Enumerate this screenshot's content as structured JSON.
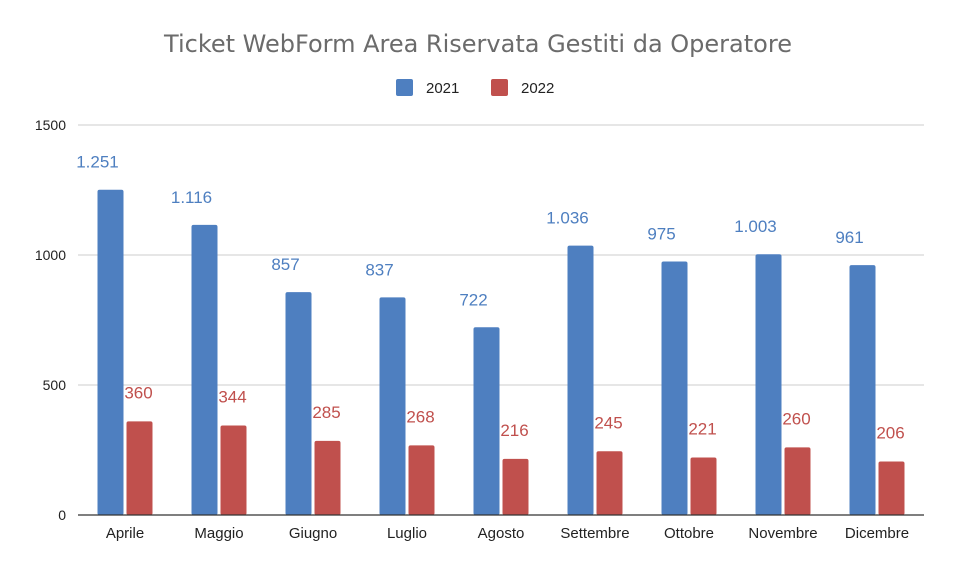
{
  "chart_data": {
    "type": "bar",
    "title": "Ticket WebForm Area Riservata Gestiti da Operatore",
    "xlabel": "",
    "ylabel": "",
    "ylim": [
      0,
      1500
    ],
    "yticks": [
      "0",
      "500",
      "1000",
      "1500"
    ],
    "ytick_values": [
      0,
      500,
      1000,
      1500
    ],
    "grid": true,
    "legend_position": "top-center",
    "categories": [
      "Aprile",
      "Maggio",
      "Giugno",
      "Luglio",
      "Agosto",
      "Settembre",
      "Ottobre",
      "Novembre",
      "Dicembre"
    ],
    "series": [
      {
        "name": "2021",
        "color": "#4e7fc0",
        "values": [
          1251,
          1116,
          857,
          837,
          722,
          1036,
          975,
          1003,
          961
        ],
        "labels": [
          "1.251",
          "1.116",
          "857",
          "837",
          "722",
          "1.036",
          "975",
          "1.003",
          "961"
        ]
      },
      {
        "name": "2022",
        "color": "#c0504d",
        "values": [
          360,
          344,
          285,
          268,
          216,
          245,
          221,
          260,
          206
        ],
        "labels": [
          "360",
          "344",
          "285",
          "268",
          "216",
          "245",
          "221",
          "260",
          "206"
        ]
      }
    ]
  }
}
